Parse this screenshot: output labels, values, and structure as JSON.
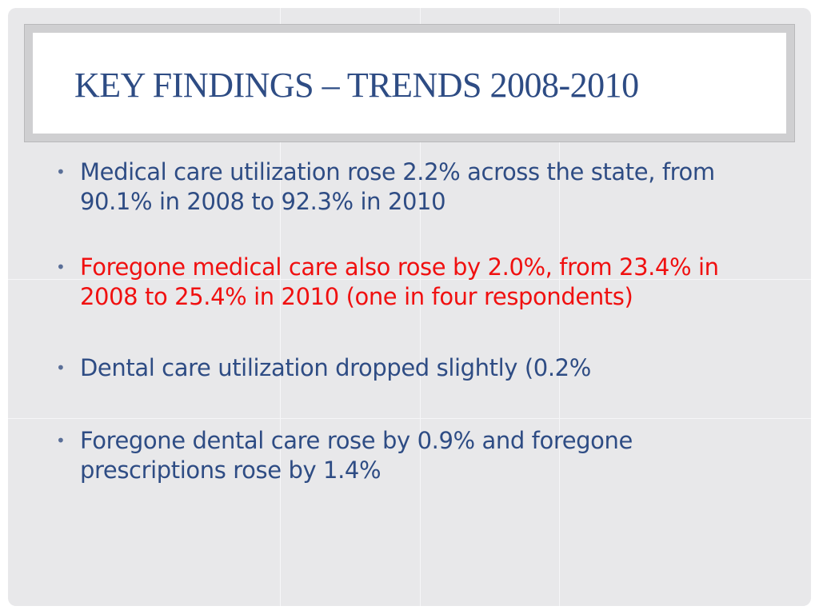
{
  "slide": {
    "title": "KEY FINDINGS – TRENDS 2008-2010",
    "bullets": [
      {
        "marker": "•",
        "text": "Medical care utilization rose 2.2% across the state, from 90.1% in 2008 to 92.3% in 2010",
        "color": "#2e4c84"
      },
      {
        "marker": "•",
        "text": "Foregone medical care also rose by 2.0%, from 23.4% in 2008 to 25.4% in 2010 (one in four respondents)",
        "color": "#f01010"
      },
      {
        "marker": "•",
        "text": "Dental care utilization dropped slightly (0.2%",
        "color": "#2e4c84"
      },
      {
        "marker": "•",
        "text": "Foregone dental care rose by 0.9% and foregone prescriptions rose by 1.4%",
        "color": "#2e4c84"
      }
    ]
  },
  "theme": {
    "title_color": "#2e4c84",
    "background_color": "#e8e8ea",
    "highlight_color": "#f01010"
  }
}
